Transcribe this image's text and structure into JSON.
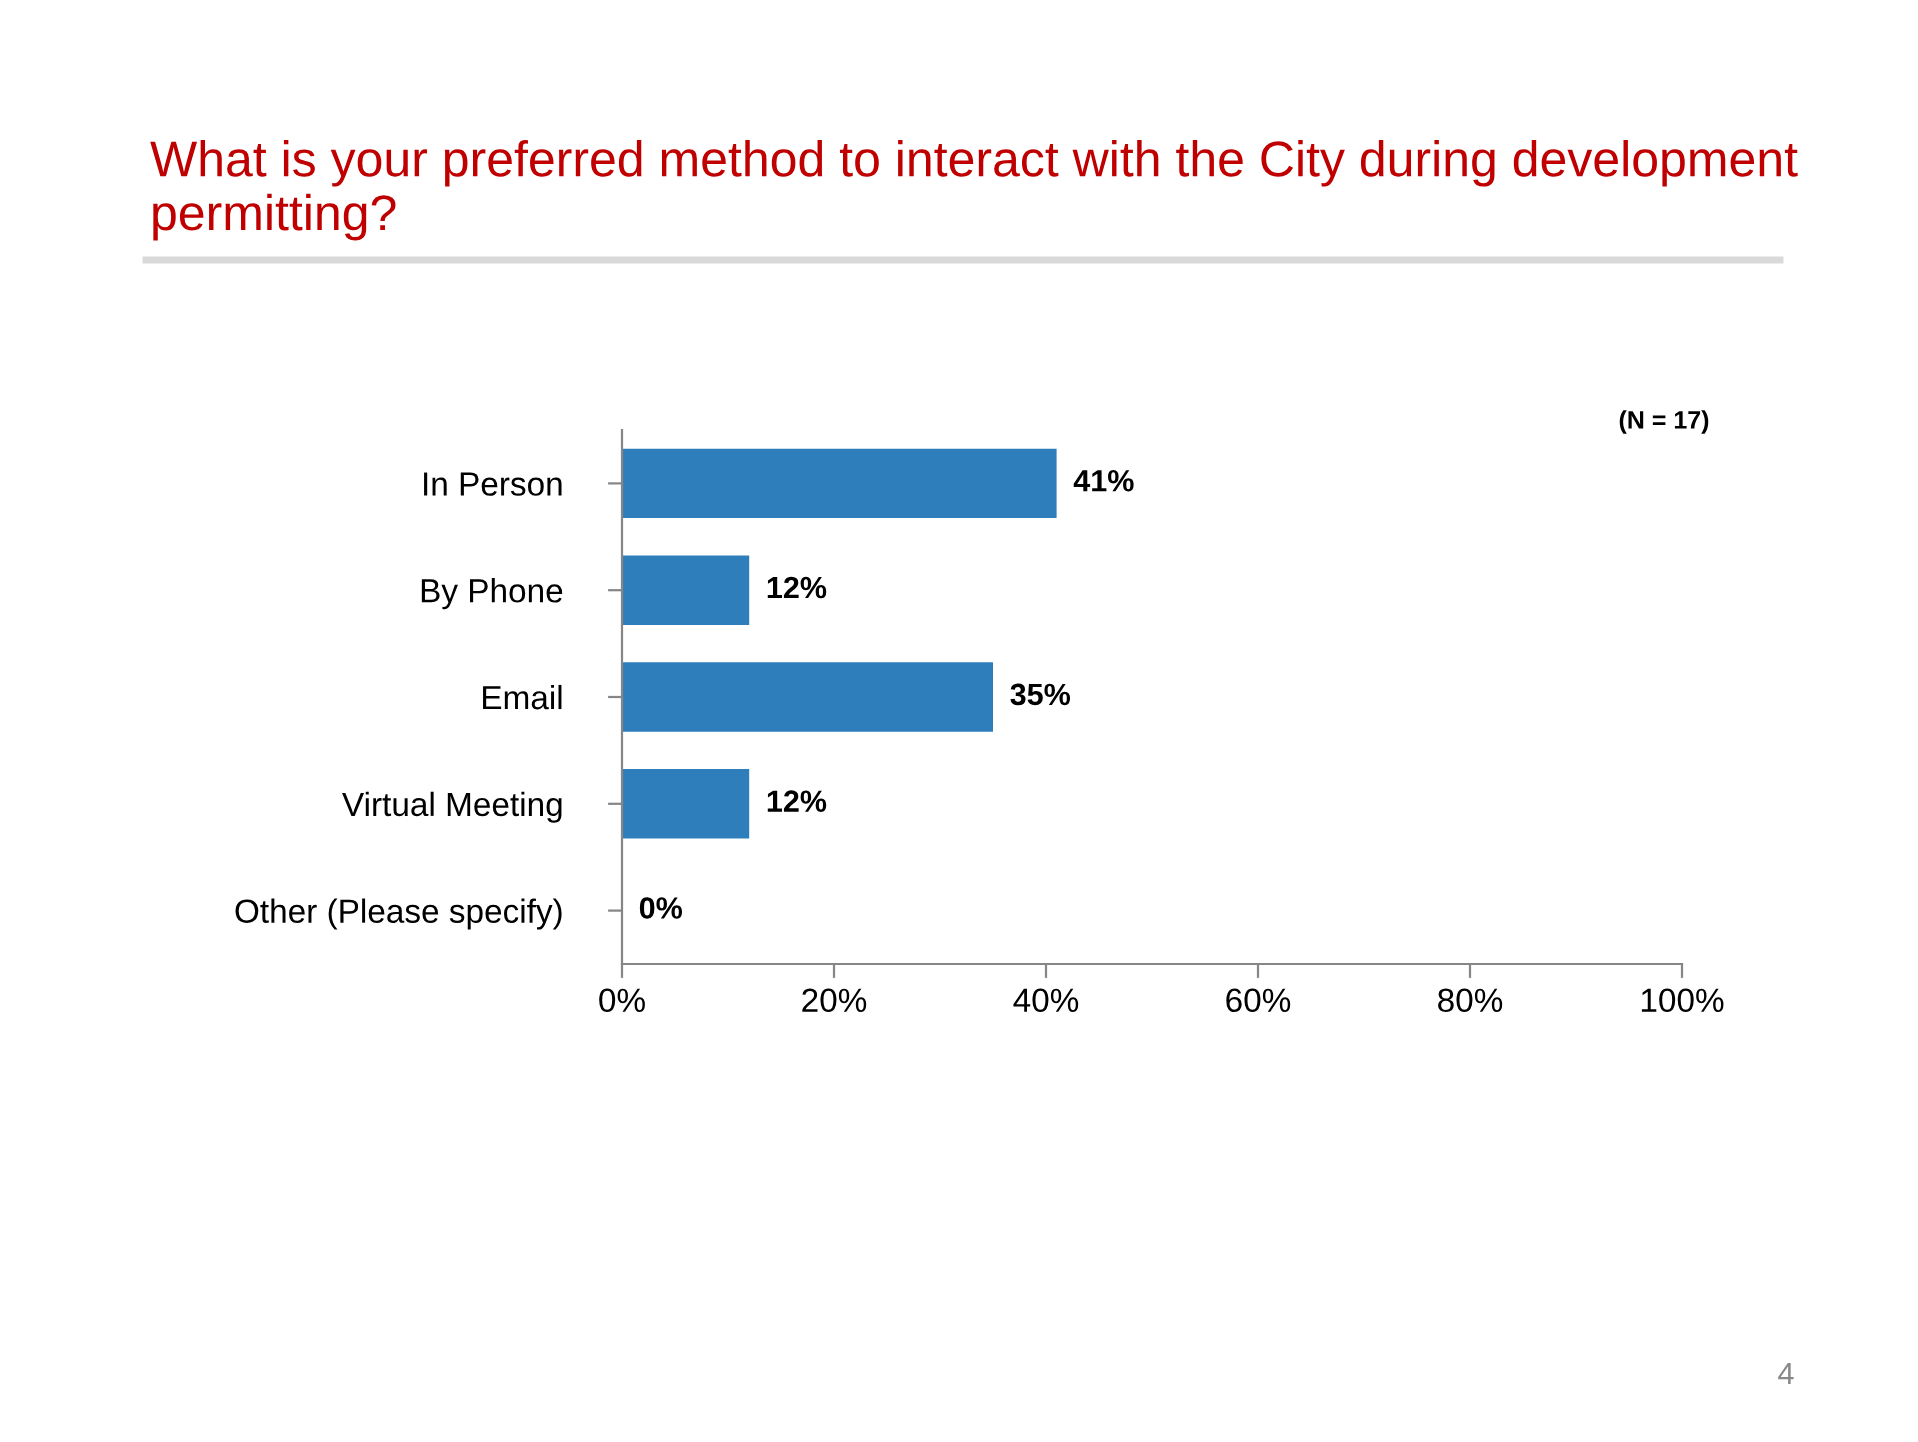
{
  "chart_data": {
    "type": "bar",
    "orientation": "horizontal",
    "title": "What is your preferred method to interact with the City during development permitting?",
    "categories": [
      "In Person",
      "By Phone",
      "Email",
      "Virtual Meeting",
      "Other (Please specify)"
    ],
    "values": [
      41,
      12,
      35,
      12,
      0
    ],
    "value_labels": [
      "41%",
      "12%",
      "35%",
      "12%",
      "0%"
    ],
    "color": "#2e7ebc",
    "xlim": [
      0,
      100
    ],
    "xticks": [
      {
        "value": 0,
        "label": "0%"
      },
      {
        "value": 20,
        "label": "20%"
      },
      {
        "value": 40,
        "label": "40%"
      },
      {
        "value": 60,
        "label": "60%"
      },
      {
        "value": 80,
        "label": "80%"
      },
      {
        "value": 100,
        "label": "100%"
      }
    ],
    "grid": false,
    "legend": false,
    "annotations": [
      "(N = 17)",
      "4"
    ]
  }
}
